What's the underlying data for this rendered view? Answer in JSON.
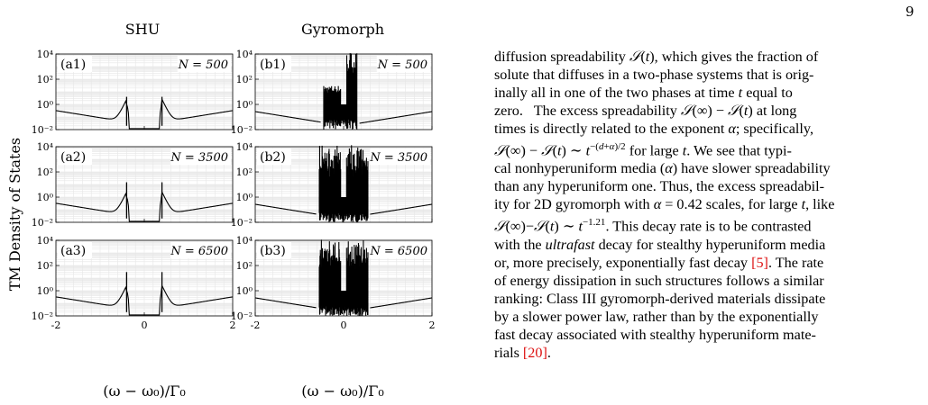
{
  "page_number": "9",
  "figure": {
    "col_titles": [
      "SHU",
      "Gyromorph"
    ],
    "ylabel": "TM Density of States",
    "xlabel": "(ω − ω₀)/Γ₀",
    "panels": [
      {
        "label": "(a1)",
        "n_label": "N = 500"
      },
      {
        "label": "(b1)",
        "n_label": "N = 500"
      },
      {
        "label": "(a2)",
        "n_label": "N = 3500"
      },
      {
        "label": "(b2)",
        "n_label": "N = 3500"
      },
      {
        "label": "(a3)",
        "n_label": "N = 6500"
      },
      {
        "label": "(b3)",
        "n_label": "N = 6500"
      }
    ],
    "y_ticks": [
      "10⁻²",
      "10⁰",
      "10²",
      "10⁴"
    ],
    "x_ticks": [
      "-2",
      "0",
      "2"
    ]
  },
  "chart_data": {
    "type": "line",
    "xlabel": "(ω − ω₀)/Γ₀",
    "ylabel": "TM Density of States",
    "xlim": [
      -2,
      2
    ],
    "ylim": [
      0.01,
      10000
    ],
    "yscale": "log",
    "grid": true,
    "panels": [
      {
        "id": "a1",
        "N": 500,
        "kind": "SHU",
        "band_edges": [
          -0.4,
          0.4
        ],
        "peak": 4
      },
      {
        "id": "a2",
        "N": 3500,
        "kind": "SHU",
        "band_edges": [
          -0.4,
          0.4
        ],
        "peak": 15
      },
      {
        "id": "a3",
        "N": 6500,
        "kind": "SHU",
        "band_edges": [
          -0.4,
          0.4
        ],
        "peak": 30
      },
      {
        "id": "b1",
        "N": 500,
        "kind": "Gyromorph",
        "spike_range": [
          -0.45,
          0.3
        ],
        "peak": 30000
      },
      {
        "id": "b2",
        "N": 3500,
        "kind": "Gyromorph",
        "spike_range": [
          -0.55,
          0.55
        ],
        "peak": 30000
      },
      {
        "id": "b3",
        "N": 6500,
        "kind": "Gyromorph",
        "spike_range": [
          -0.55,
          0.55
        ],
        "peak": 30000
      }
    ]
  },
  "text_lines": [
    "diffusion spreadability 𝒮(t), which gives the fraction of",
    "solute that diffuses in a two-phase systems that is orig-",
    "inally all in one of the two phases at time t equal to",
    "zero.   The excess spreadability 𝒮(∞) − 𝒮(t) at long",
    "times is directly related to the exponent α; specifically,",
    "𝒮(∞) − 𝒮(t) ∼ t^{−(d+α)/2} for large t. We see that typi-",
    "cal nonhyperuniform media (α) have slower spreadability",
    "than any hyperuniform one. Thus, the excess spreadabil-",
    "ity for 2D gyromorph with α = 0.42 scales, for large t, like",
    "𝒮(∞)−𝒮(t) ∼ t^{−1.21}. This decay rate is to be contrasted",
    "with the ultrafast decay for stealthy hyperuniform media",
    "or, more precisely, exponentially fast decay [5]. The rate",
    "of energy dissipation in such structures follows a similar",
    "ranking: Class III gyromorph-derived materials dissipate",
    "by a slower power law, rather than by the exponentially",
    "fast decay associated with stealthy hyperuniform mate-",
    "rials [20]."
  ]
}
